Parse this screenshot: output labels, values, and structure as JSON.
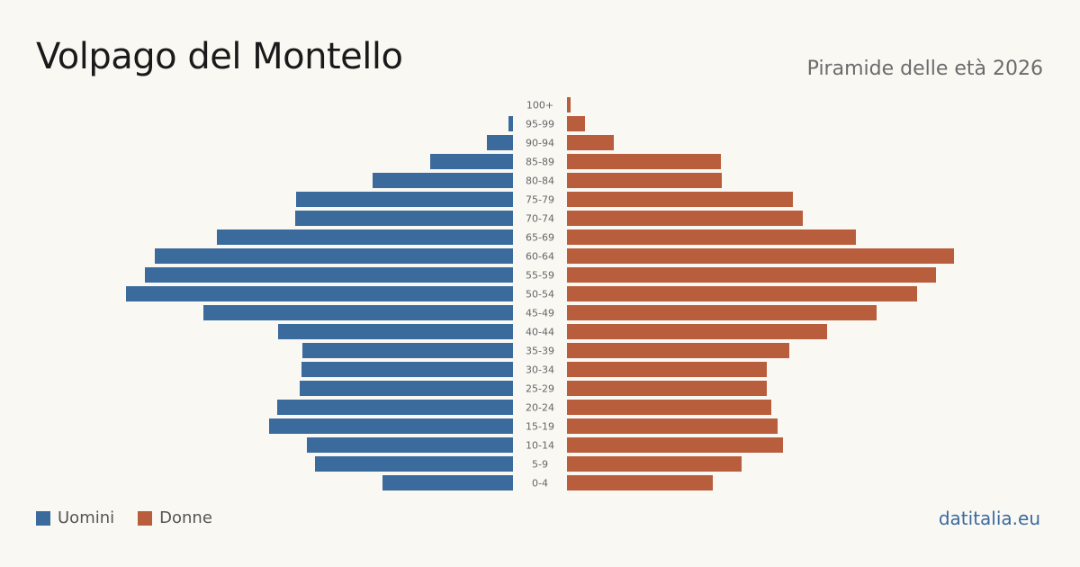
{
  "header": {
    "title": "Volpago del Montello",
    "subtitle": "Piramide delle età 2026"
  },
  "legend": {
    "men_label": "Uomini",
    "women_label": "Donne"
  },
  "footer": {
    "source": "datitalia.eu"
  },
  "colors": {
    "men": "#3b6a9c",
    "women": "#b95e3d"
  },
  "chart_data": {
    "type": "bar",
    "orientation": "horizontal-pyramid",
    "categories": [
      "100+",
      "95-99",
      "90-94",
      "85-89",
      "80-84",
      "75-79",
      "70-74",
      "65-69",
      "60-64",
      "55-59",
      "50-54",
      "45-49",
      "40-44",
      "35-39",
      "30-34",
      "25-29",
      "20-24",
      "15-19",
      "10-14",
      "5-9",
      "0-4"
    ],
    "series": [
      {
        "name": "Uomini",
        "values": [
          0,
          5,
          29,
          92,
          156,
          241,
          242,
          329,
          398,
          409,
          430,
          344,
          261,
          234,
          235,
          237,
          262,
          271,
          229,
          220,
          145
        ]
      },
      {
        "name": "Donne",
        "values": [
          4,
          20,
          52,
          171,
          172,
          251,
          262,
          321,
          430,
          410,
          389,
          344,
          289,
          247,
          222,
          222,
          227,
          234,
          240,
          194,
          162
        ]
      }
    ],
    "xlabel": "",
    "ylabel": "",
    "grid": false,
    "legend_position": "bottom-left"
  }
}
